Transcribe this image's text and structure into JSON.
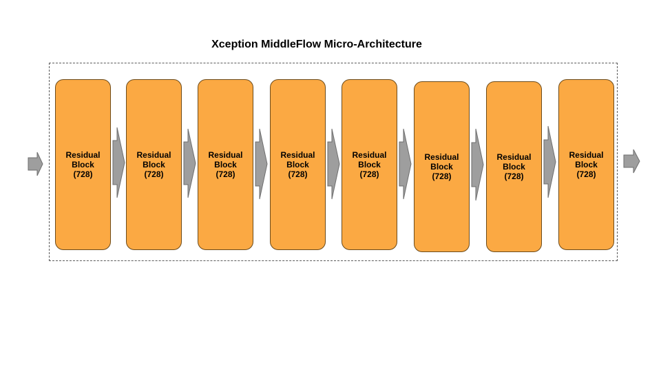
{
  "diagram": {
    "title": "Xception MiddleFlow Micro-Architecture",
    "colors": {
      "block_fill": "#FBA943",
      "block_border": "#6B4A1A",
      "arrow_fill": "#9E9E9E",
      "arrow_border": "#6E6E6E",
      "frame_border": "#595959"
    },
    "blocks": [
      {
        "line1": "Residual",
        "line2": "Block",
        "line3": "(728)"
      },
      {
        "line1": "Residual",
        "line2": "Block",
        "line3": "(728)"
      },
      {
        "line1": "Residual",
        "line2": "Block",
        "line3": "(728)"
      },
      {
        "line1": "Residual",
        "line2": "Block",
        "line3": "(728)"
      },
      {
        "line1": "Residual",
        "line2": "Block",
        "line3": "(728)"
      },
      {
        "line1": "Residual",
        "line2": "Block",
        "line3": "(728)"
      },
      {
        "line1": "Residual",
        "line2": "Block",
        "line3": "(728)"
      },
      {
        "line1": "Residual",
        "line2": "Block",
        "line3": "(728)"
      }
    ]
  }
}
